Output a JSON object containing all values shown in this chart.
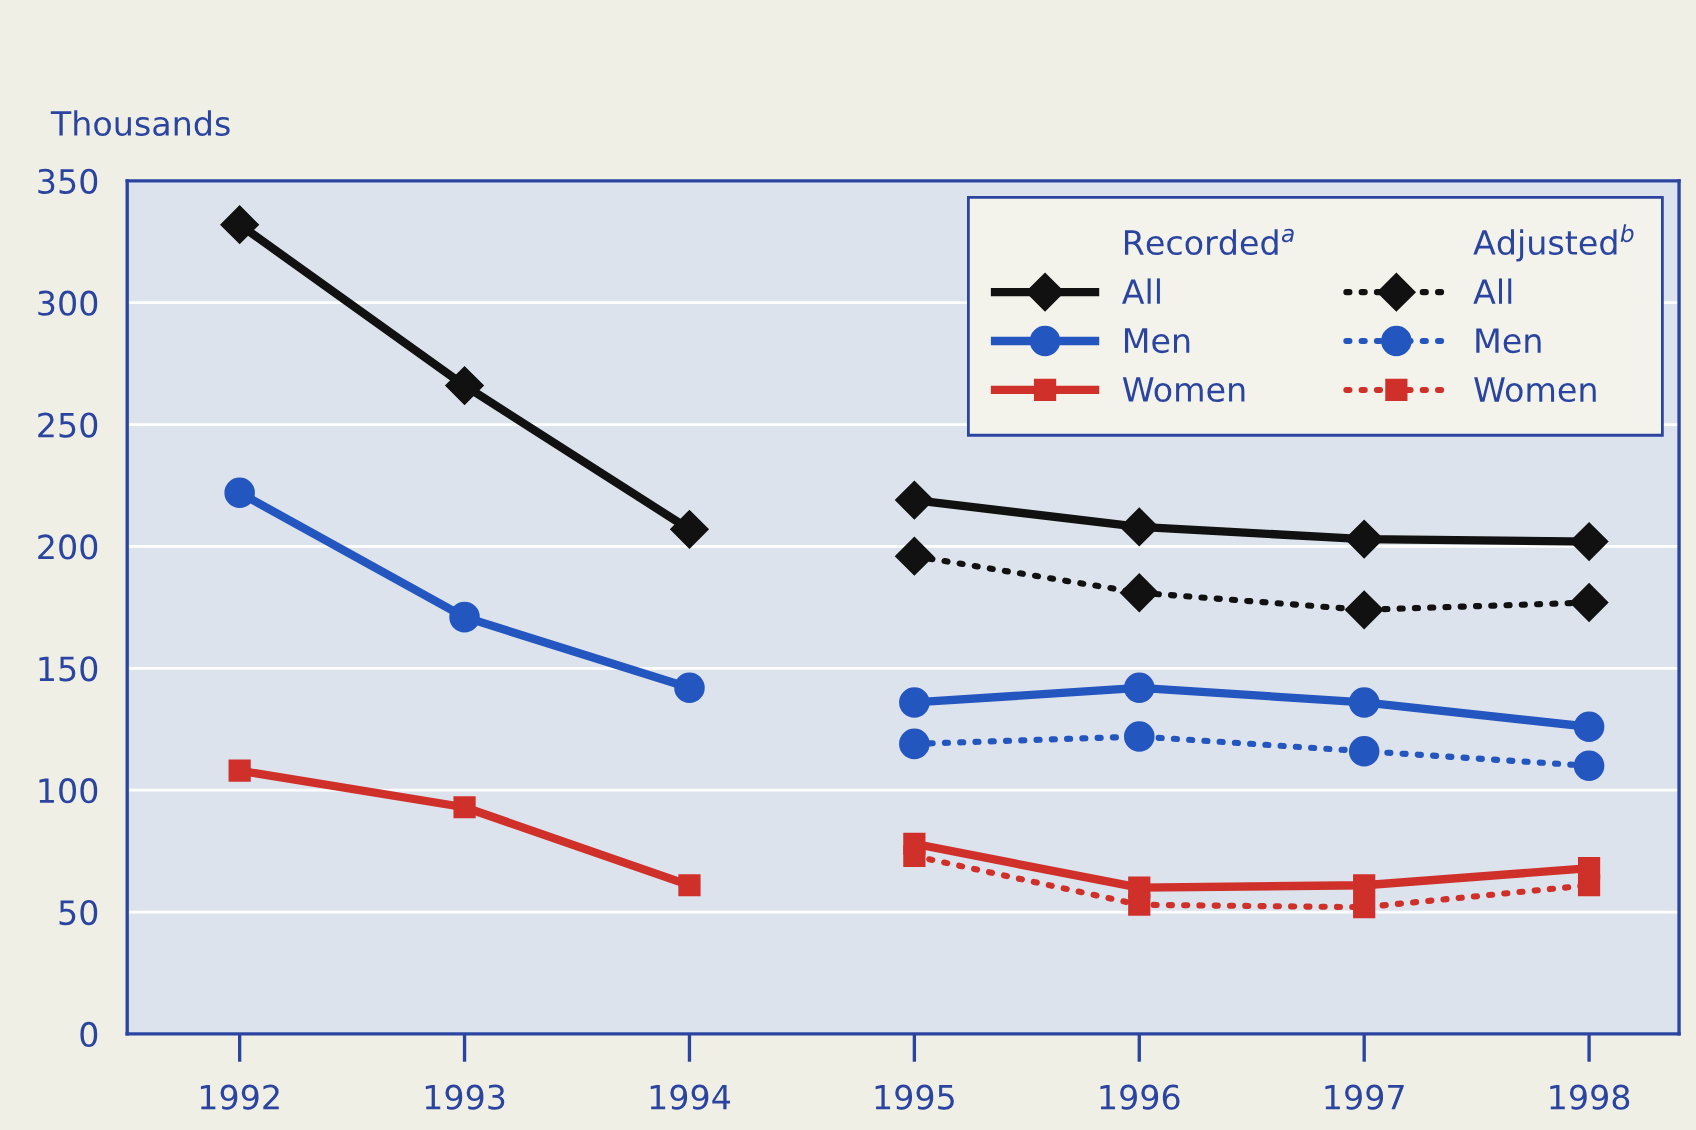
{
  "chart_data": {
    "type": "line",
    "ylabel": "Thousands",
    "annotations": [
      "Recorded$^{a}$",
      "Adjusted$^{b}$"
    ],
    "xlim": [
      1991.5,
      1998.4
    ],
    "xticks": [
      1992,
      1993,
      1994,
      1995,
      1996,
      1997,
      1998
    ],
    "ylim": [
      0,
      350
    ],
    "yticks": [
      0,
      50,
      100,
      150,
      200,
      250,
      300,
      350
    ],
    "grid": "y",
    "legend": "top right",
    "series": [
      {
        "name": "All",
        "color": "#111111",
        "marker": "diamond",
        "line_style": "solid",
        "x": [
          1992,
          1993,
          1994
        ],
        "values": [
          332,
          266,
          207
        ]
      },
      {
        "name": "Men",
        "color": "#2456c0",
        "marker": "circle",
        "line_style": "solid",
        "x": [
          1992,
          1993,
          1994
        ],
        "values": [
          222,
          171,
          142
        ]
      },
      {
        "name": "Women",
        "color": "#d0302a",
        "marker": "square",
        "line_style": "solid",
        "x": [
          1992,
          1993,
          1994
        ],
        "values": [
          108,
          93,
          61
        ]
      },
      {
        "color": "#111111",
        "marker": "diamond",
        "line_style": "solid",
        "x": [
          1995,
          1996,
          1997,
          1998
        ],
        "values": [
          219,
          208,
          203,
          202
        ]
      },
      {
        "color": "#2456c0",
        "marker": "circle",
        "line_style": "solid",
        "x": [
          1995,
          1996,
          1997,
          1998
        ],
        "values": [
          136,
          142,
          136,
          126
        ]
      },
      {
        "color": "#d0302a",
        "marker": "square",
        "line_style": "solid",
        "x": [
          1995,
          1996,
          1997,
          1998
        ],
        "values": [
          78,
          60,
          61,
          68
        ]
      },
      {
        "name": "All",
        "color": "#111111",
        "marker": "diamond",
        "line_style": "dotted",
        "x": [
          1995,
          1996,
          1997,
          1998
        ],
        "values": [
          196,
          181,
          174,
          177
        ]
      },
      {
        "name": "Men",
        "color": "#2456c0",
        "marker": "circle",
        "line_style": "dotted",
        "x": [
          1995,
          1996,
          1997,
          1998
        ],
        "values": [
          119,
          122,
          116,
          110
        ]
      },
      {
        "name": "Women",
        "color": "#d0302a",
        "marker": "square",
        "line_style": "dotted",
        "x": [
          1995,
          1996,
          1997,
          1998
        ],
        "values": [
          73,
          53,
          52,
          61
        ]
      }
    ]
  }
}
